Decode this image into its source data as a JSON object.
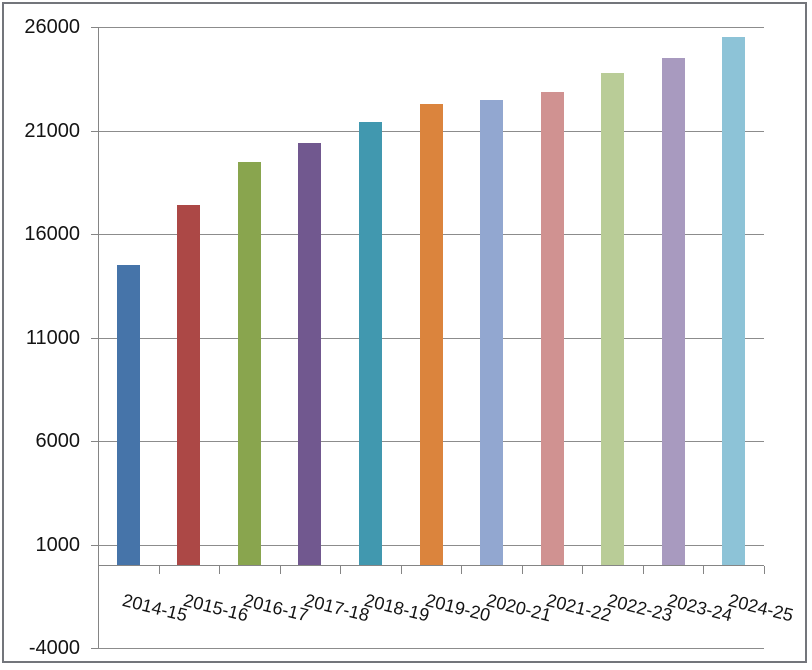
{
  "window": {
    "background": "#ffffff",
    "frame_border_color": "#73757b"
  },
  "chart_data": {
    "type": "bar",
    "title": "",
    "xlabel": "",
    "ylabel": "",
    "categories": [
      "2014-15",
      "2015-16",
      "2016-17",
      "2017-18",
      "2018-19",
      "2019-20",
      "2020-21",
      "2021-22",
      "2022-23",
      "2023-24",
      "2024-25"
    ],
    "values": [
      14500,
      17400,
      19500,
      20400,
      21400,
      22300,
      22450,
      22850,
      23800,
      24500,
      25500
    ],
    "ylim": [
      -4000,
      26000
    ],
    "ytick_interval": 5000,
    "yticks": [
      26000,
      21000,
      16000,
      11000,
      6000,
      1000,
      -4000
    ],
    "baseline": 0,
    "grid": true,
    "legend": "none",
    "bar_colors": [
      "#4674A9",
      "#AC4846",
      "#89A54E",
      "#71588F",
      "#4198AF",
      "#DB843D",
      "#92A7D0",
      "#D09291",
      "#B9CC97",
      "#A89ABF",
      "#8DC3D7"
    ],
    "gridline_color": "#8c8c8c",
    "axis_color": "#858585",
    "tick_color": "#858585",
    "label_color": "#141414"
  }
}
